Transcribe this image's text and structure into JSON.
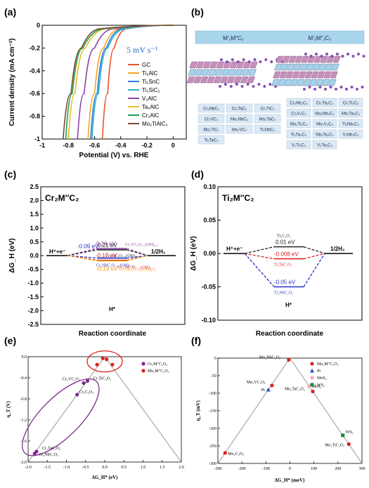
{
  "chart_data": [
    {
      "panel": "(a)",
      "type": "line",
      "xlabel": "Potential (V) vs. RHE",
      "ylabel": "Current density (mA cm⁻²)",
      "xlim": [
        -1,
        0.1
      ],
      "ylim": [
        -1,
        0
      ],
      "xticks": [
        "-1",
        "-0.8",
        "-0.6",
        "-0.4",
        "-0.2",
        "0"
      ],
      "yticks": [
        "0",
        "-0.2",
        "-0.4",
        "-0.6",
        "-0.8",
        "-1"
      ],
      "annotation": "5 mV s⁻¹",
      "legend_position": "right",
      "series": [
        {
          "name": "GC",
          "color": "#e8542c",
          "x": [
            0.0,
            -0.35,
            -0.45,
            -0.5,
            -0.54
          ],
          "y": [
            0.0,
            -0.03,
            -0.2,
            -0.6,
            -1.0
          ]
        },
        {
          "name": "Ti₂AlC",
          "color": "#f5a51e",
          "x": [
            0.0,
            -0.4,
            -0.53,
            -0.6,
            -0.65
          ],
          "y": [
            0.0,
            -0.03,
            -0.2,
            -0.6,
            -1.0
          ]
        },
        {
          "name": "Ti₂SnC",
          "color": "#2d7be3",
          "x": [
            0.0,
            -0.38,
            -0.51,
            -0.58,
            -0.63
          ],
          "y": [
            0.0,
            -0.03,
            -0.2,
            -0.6,
            -1.0
          ]
        },
        {
          "name": "Ti₃SiC₂",
          "color": "#29b0c8",
          "x": [
            0.0,
            -0.36,
            -0.5,
            -0.57,
            -0.62
          ],
          "y": [
            0.0,
            -0.03,
            -0.2,
            -0.6,
            -1.0
          ]
        },
        {
          "name": "V₂AlC",
          "color": "#8e44ad",
          "x": [
            0.0,
            -0.45,
            -0.6,
            -0.68,
            -0.73
          ],
          "y": [
            0.0,
            -0.03,
            -0.2,
            -0.6,
            -1.0
          ]
        },
        {
          "name": "Ta₂AlC",
          "color": "#e0c020",
          "x": [
            0.0,
            -0.5,
            -0.67,
            -0.75,
            -0.8
          ],
          "y": [
            0.0,
            -0.03,
            -0.2,
            -0.6,
            -1.0
          ]
        },
        {
          "name": "Cr₂AlC",
          "color": "#1f9e5a",
          "x": [
            0.0,
            -0.52,
            -0.69,
            -0.77,
            -0.82
          ],
          "y": [
            0.0,
            -0.03,
            -0.2,
            -0.6,
            -1.0
          ]
        },
        {
          "name": "Mo₂TiAlC₂",
          "color": "#7b4a2e",
          "x": [
            0.0,
            -0.55,
            -0.7,
            -0.78,
            -0.84
          ],
          "y": [
            0.0,
            -0.03,
            -0.2,
            -0.6,
            -1.0
          ]
        }
      ]
    },
    {
      "panel": "(b)",
      "type": "table",
      "headers": [
        "M′₂M″C₂",
        "M′₂M″₂C₃"
      ],
      "left_tiles": [
        "Cr₂NbC₂",
        "Cr₂TaC₂",
        "Cr₂TiC₂",
        "Cr₂VC₂",
        "Mo₂NbC₂",
        "Mo₂TaC₂",
        "Mo₂TiC₂",
        "Mo₂VC₂",
        "Ti₂NbC₂",
        "Ti₂TaC₂"
      ],
      "right_tiles": [
        "Cr₂Nb₂C₃",
        "Cr₂Ta₂C₃",
        "Cr₂Ti₂C₃",
        "Cr₂V₂C₃",
        "Mo₂Nb₂C₃",
        "Mo₂Ta₂C₃",
        "Mo₂Ti₂C₃",
        "Mo₂V₂C₃",
        "Ti₂Nb₂C₃",
        "Ti₂Ta₂C₃",
        "Nb₂Ta₂C₃",
        "V₂Nb₂C₃",
        "V₂Ti₂C₃",
        "V₂Ta₂C₃"
      ]
    },
    {
      "panel": "(c)",
      "type": "line",
      "title": "Cr₂M″C₂",
      "xlabel": "Reaction coordinate",
      "ylabel": "ΔG_H (eV)",
      "ylim": [
        -2.5,
        2.5
      ],
      "yticks": [
        "2.5",
        "2.0",
        "1.5",
        "1.0",
        "0.5",
        "0.0",
        "-0.5",
        "-1.0",
        "-1.5",
        "-2.0",
        "-2.5"
      ],
      "labels": {
        "left": "H⁺+e⁻",
        "right": "1/2H₂",
        "bottom": "H*"
      },
      "series": [
        {
          "name": "Cr₂VC₂O₁.₅(OH)₀.₅",
          "value": 0.26,
          "label": "0.26 eV",
          "color": "#8e44ad"
        },
        {
          "name": "Cr₂TiC₂O₁.₅(OH)₀.₅",
          "value": 0.21,
          "label": "0.21 eV",
          "color": "#222222"
        },
        {
          "name": "Cr₂NbC₂O₁.₂₅(OH)₀.₇₅",
          "value": -0.09,
          "label": "-0.09 eV",
          "color": "#2233cc"
        },
        {
          "name": "Cr₂TaC₂O₁.₂₅(OH)₀.₇₅",
          "value": -0.17,
          "label": "-0.17 eV",
          "color": "#dd2222"
        },
        {
          "name": "Cr₂TiC₂O₁.₂₅(OH)₀.₇₅",
          "value": -0.19,
          "label": "-0.19 eV",
          "color": "#f09a1a"
        }
      ]
    },
    {
      "panel": "(d)",
      "type": "line",
      "title": "Ti₂M″C₂",
      "xlabel": "Reaction coordinate",
      "ylabel": "ΔG_H (eV)",
      "ylim": [
        -0.1,
        0.1
      ],
      "yticks": [
        "0.10",
        "0.05",
        "0.00",
        "-0.05",
        "-0.10"
      ],
      "labels": {
        "left": "H⁺+e⁻",
        "right": "1/2H₂",
        "bottom": "H*"
      },
      "series": [
        {
          "name": "Ti₃C₂O₂",
          "value": 0.01,
          "label": "0.01 eV",
          "color": "#222222"
        },
        {
          "name": "Ti₂TaC₂O₂",
          "value": -0.008,
          "label": "-0.008 eV",
          "color": "#dd2222"
        },
        {
          "name": "Ti₂NbC₂O₂",
          "value": -0.05,
          "label": "-0.05 eV",
          "color": "#2233cc"
        }
      ]
    },
    {
      "panel": "(e)",
      "type": "scatter",
      "xlabel": "ΔG_H* (eV)",
      "ylabel": "η_T (V)",
      "xlim": [
        -2.0,
        2.0
      ],
      "ylim": [
        -2.0,
        0.0
      ],
      "xticks": [
        "-2.0",
        "-1.5",
        "-1.0",
        "-0.5",
        "0.0",
        "0.5",
        "1.0",
        "1.5",
        "2.0"
      ],
      "yticks": [
        "0.0",
        "-0.4",
        "-0.8",
        "-1.2",
        "-1.6",
        "-2.0"
      ],
      "legend_position": "top-right",
      "series": [
        {
          "name": "Cr₂M″C₂O₂",
          "color": "#7b2a8b",
          "points": [
            {
              "label": "Cr₂VC₂O₂",
              "x": -0.55,
              "y": -0.5
            },
            {
              "label": "Cr₂TiC₂O₂",
              "x": -0.45,
              "y": -0.46
            },
            {
              "label": "Cr₃C₂O₂",
              "x": -0.72,
              "y": -0.72
            },
            {
              "label": "Cr₂TaC₂O₂",
              "x": -1.78,
              "y": -1.8
            },
            {
              "label": "Cr₂NbC₂O₂",
              "x": -1.83,
              "y": -1.84
            }
          ]
        },
        {
          "name": "Mo₂M″C₂O₂",
          "color": "#e02020",
          "points": [
            {
              "x": -0.2,
              "y": -0.15
            },
            {
              "x": -0.05,
              "y": -0.03
            },
            {
              "x": 0.05,
              "y": -0.05
            },
            {
              "x": 0.2,
              "y": -0.15
            }
          ]
        }
      ]
    },
    {
      "panel": "(f)",
      "type": "scatter",
      "xlabel": "ΔG_H* (meV)",
      "ylabel": "η_T (mV)",
      "xlim": [
        -300,
        300
      ],
      "ylim": [
        -300,
        0
      ],
      "xticks": [
        "-300",
        "-200",
        "-100",
        "0",
        "100",
        "200",
        "300"
      ],
      "yticks": [
        "0",
        "-50",
        "-100",
        "-150",
        "-200",
        "-250",
        "-300"
      ],
      "legend_position": "top-right",
      "series": [
        {
          "name": "Mo₂M″C₂O₂",
          "color": "#e02020",
          "points": [
            {
              "label": "Mo₂NbC₂O₂",
              "x": -5,
              "y": -5
            },
            {
              "label": "Mo₂VC₂O₂",
              "x": -75,
              "y": -78
            },
            {
              "label": "Mo₂TaC₂O₂",
              "x": 95,
              "y": -95
            },
            {
              "label": "Mo₂TiC₂O₂",
              "x": 245,
              "y": -245
            },
            {
              "label": "Mo₂C₂O₂",
              "x": -270,
              "y": -270
            }
          ]
        },
        {
          "name": "Pt",
          "color": "#2244cc",
          "points": [
            {
              "label": "Pt",
              "x": -90,
              "y": -90
            }
          ]
        },
        {
          "name": "MoS₂",
          "color": "#f4a6c0",
          "points": [
            {
              "label": "MoS₂",
              "x": 80,
              "y": -80
            }
          ]
        },
        {
          "name": "WS₂",
          "color": "#1a8a2a",
          "points": [
            {
              "label": "WS₂",
              "x": 220,
              "y": -220
            }
          ]
        }
      ]
    }
  ]
}
